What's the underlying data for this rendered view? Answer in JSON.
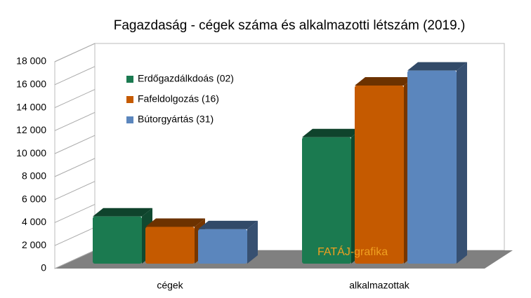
{
  "chart_data": {
    "type": "bar3d",
    "title": "Fagazdaság - cégek száma és alkalmazotti létszám (2019.)",
    "categories": [
      "cégek",
      "alkalmazottak"
    ],
    "series": [
      {
        "name": "Erdőgazdálkdoás (02)",
        "color": "#1b7a50",
        "values": [
          4100,
          11000
        ]
      },
      {
        "name": "Fafeldolgozás (16)",
        "color": "#c55a00",
        "values": [
          3200,
          15500
        ]
      },
      {
        "name": "Bútorgyártás (31)",
        "color": "#5b86bd",
        "values": [
          3000,
          16800
        ]
      }
    ],
    "ylim": [
      0,
      18000
    ],
    "yticks": [
      0,
      {
        "value": 2000,
        "label": "2 000"
      },
      {
        "value": 4000,
        "label": "4 000"
      },
      {
        "value": 6000,
        "label": "6 000"
      },
      {
        "value": 8000,
        "label": "8 000"
      },
      {
        "value": 10000,
        "label": "10 000"
      },
      {
        "value": 12000,
        "label": "12 000"
      },
      {
        "value": 14000,
        "label": "14 000"
      },
      {
        "value": 16000,
        "label": "16 000"
      },
      {
        "value": 18000,
        "label": "18 000"
      }
    ],
    "grid": true,
    "legend": "upper-left",
    "annotation": "FATÁJ-grafika"
  }
}
